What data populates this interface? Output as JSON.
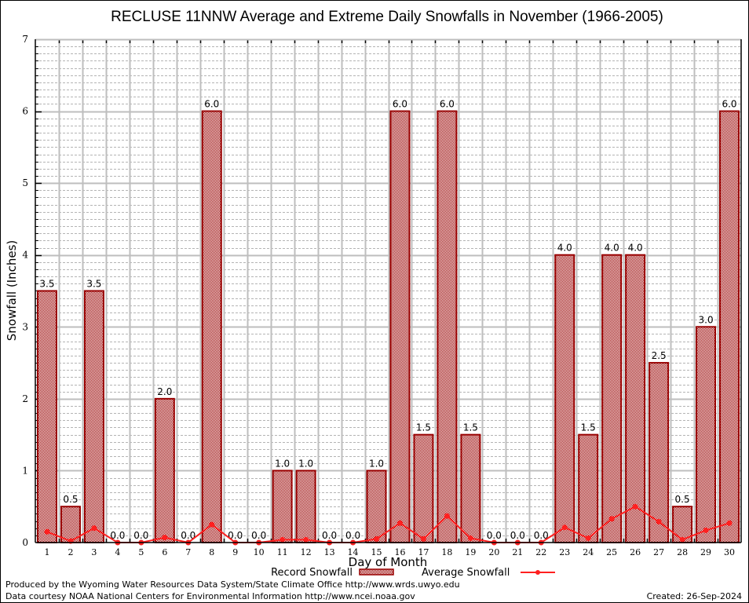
{
  "chart_data": {
    "type": "bar",
    "title": "RECLUSE 11NNW Average and Extreme Daily Snowfalls in November (1966-2005)",
    "xlabel": "Day of Month",
    "ylabel": "Snowfall (Inches)",
    "ylim": [
      0,
      7
    ],
    "yticks": [
      "0",
      "1",
      "2",
      "3",
      "4",
      "5",
      "6",
      "7"
    ],
    "minor_grid_step": 0.1,
    "grid": true,
    "categories": [
      "1",
      "2",
      "3",
      "4",
      "5",
      "6",
      "7",
      "8",
      "9",
      "10",
      "11",
      "12",
      "13",
      "14",
      "15",
      "16",
      "17",
      "18",
      "19",
      "20",
      "21",
      "22",
      "23",
      "24",
      "25",
      "26",
      "27",
      "28",
      "29",
      "30"
    ],
    "series": [
      {
        "name": "Record Snowfall",
        "type": "bar",
        "color": "#990000",
        "values": [
          3.5,
          0.5,
          3.5,
          0.0,
          0.0,
          2.0,
          0.0,
          6.0,
          0.0,
          0.0,
          1.0,
          1.0,
          0.0,
          0.0,
          1.0,
          6.0,
          1.5,
          6.0,
          1.5,
          0.0,
          0.0,
          0.0,
          4.0,
          1.5,
          4.0,
          4.0,
          2.5,
          0.5,
          3.0,
          6.0
        ],
        "labels": [
          "3.5",
          "0.5",
          "3.5",
          "0.0",
          "0.0",
          "2.0",
          "0.0",
          "6.0",
          "0.0",
          "0.0",
          "1.0",
          "1.0",
          "0.0",
          "0.0",
          "1.0",
          "6.0",
          "1.5",
          "6.0",
          "1.5",
          "0.0",
          "0.0",
          "0.0",
          "4.0",
          "1.5",
          "4.0",
          "4.0",
          "2.5",
          "0.5",
          "3.0",
          "6.0"
        ]
      },
      {
        "name": "Average Snowfall",
        "type": "line",
        "color": "#ff2020",
        "values": [
          0.15,
          0.02,
          0.2,
          0.0,
          0.0,
          0.07,
          0.0,
          0.25,
          0.0,
          0.0,
          0.04,
          0.04,
          0.0,
          0.0,
          0.05,
          0.27,
          0.05,
          0.37,
          0.06,
          0.0,
          0.0,
          0.0,
          0.21,
          0.06,
          0.33,
          0.5,
          0.29,
          0.04,
          0.17,
          0.27
        ]
      }
    ],
    "legend": {
      "placement": "bottom-center",
      "record_label": "Record Snowfall",
      "average_label": "Average Snowfall"
    }
  },
  "footer": {
    "line1": "Produced by the Wyoming Water Resources Data System/State Climate Office http://www.wrds.uwyo.edu",
    "line2": "Data courtesy NOAA National Centers for Environmental Information http://www.ncei.noaa.gov",
    "created": "Created: 26-Sep-2024"
  }
}
